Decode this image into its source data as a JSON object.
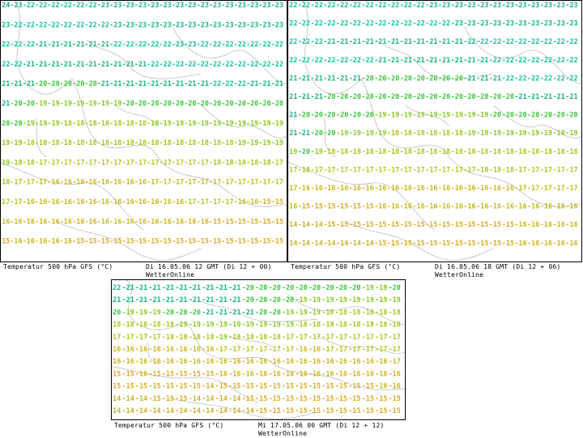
{
  "panels": [
    {
      "id": "p1",
      "title": "Temperatur 500 hPa GFS (°C)",
      "valid": "Di 16.05.06 12 GMT (Di 12 + 00)",
      "source": "WetterOnline",
      "rows": [
        [
          24,
          23,
          22,
          22,
          22,
          22,
          22,
          22,
          23,
          23,
          23,
          23,
          23,
          23,
          23,
          23,
          23,
          23,
          23,
          23,
          23,
          23,
          23
        ],
        [
          23,
          22,
          22,
          22,
          22,
          22,
          22,
          22,
          22,
          23,
          23,
          23,
          23,
          23,
          23,
          23,
          23,
          23,
          23,
          23,
          23,
          23,
          23
        ],
        [
          22,
          22,
          22,
          21,
          21,
          21,
          21,
          21,
          21,
          22,
          22,
          22,
          22,
          22,
          23,
          23,
          22,
          22,
          22,
          22,
          22,
          22,
          22
        ],
        [
          22,
          22,
          21,
          21,
          21,
          21,
          21,
          21,
          21,
          21,
          21,
          21,
          22,
          22,
          22,
          22,
          22,
          22,
          22,
          22,
          22,
          22,
          22
        ],
        [
          21,
          21,
          21,
          20,
          20,
          20,
          20,
          20,
          21,
          21,
          21,
          21,
          21,
          21,
          21,
          21,
          21,
          22,
          22,
          22,
          21,
          21,
          21
        ],
        [
          21,
          20,
          20,
          19,
          19,
          19,
          19,
          19,
          19,
          19,
          20,
          20,
          20,
          20,
          20,
          20,
          20,
          20,
          20,
          20,
          20,
          20,
          20
        ],
        [
          20,
          20,
          19,
          19,
          19,
          18,
          18,
          18,
          18,
          18,
          18,
          18,
          19,
          19,
          19,
          19,
          19,
          19,
          19,
          19,
          19,
          19,
          19
        ],
        [
          19,
          19,
          18,
          18,
          18,
          18,
          18,
          18,
          18,
          18,
          18,
          18,
          18,
          18,
          18,
          18,
          18,
          18,
          18,
          19,
          19,
          19,
          19
        ],
        [
          19,
          18,
          18,
          17,
          17,
          17,
          17,
          17,
          17,
          17,
          17,
          17,
          17,
          17,
          17,
          17,
          17,
          18,
          18,
          18,
          18,
          18,
          17
        ],
        [
          18,
          17,
          17,
          17,
          16,
          16,
          16,
          16,
          16,
          16,
          16,
          16,
          17,
          17,
          17,
          17,
          17,
          17,
          17,
          17,
          17,
          17,
          17
        ],
        [
          17,
          17,
          16,
          16,
          16,
          16,
          16,
          16,
          16,
          16,
          16,
          16,
          16,
          16,
          16,
          17,
          17,
          17,
          17,
          16,
          16,
          15,
          15
        ],
        [
          16,
          16,
          16,
          16,
          16,
          16,
          16,
          16,
          16,
          16,
          16,
          16,
          16,
          16,
          16,
          16,
          16,
          15,
          15,
          15,
          15,
          15,
          15
        ],
        [
          15,
          16,
          16,
          16,
          16,
          16,
          15,
          15,
          15,
          15,
          15,
          15,
          15,
          15,
          15,
          15,
          15,
          15,
          15,
          15,
          15,
          15,
          15
        ]
      ]
    },
    {
      "id": "p2",
      "title": "Temperatur 500 hPa GFS (°C)",
      "valid": "Di 16.05.06 18 GMT (Di 12 + 06)",
      "source": "WetterOnline",
      "rows": [
        [
          22,
          22,
          22,
          22,
          22,
          22,
          22,
          22,
          22,
          22,
          22,
          23,
          23,
          23,
          23,
          23,
          23,
          23,
          23,
          23,
          23,
          23,
          23
        ],
        [
          22,
          22,
          22,
          22,
          22,
          22,
          22,
          22,
          22,
          22,
          22,
          22,
          22,
          23,
          23,
          23,
          23,
          23,
          23,
          23,
          23,
          23,
          23
        ],
        [
          22,
          22,
          22,
          21,
          21,
          21,
          21,
          21,
          21,
          21,
          21,
          21,
          21,
          21,
          22,
          22,
          22,
          22,
          22,
          22,
          22,
          22,
          22
        ],
        [
          22,
          22,
          22,
          22,
          22,
          22,
          22,
          21,
          21,
          21,
          21,
          21,
          21,
          21,
          21,
          21,
          22,
          22,
          22,
          22,
          22,
          22,
          22
        ],
        [
          21,
          21,
          21,
          21,
          21,
          21,
          20,
          20,
          20,
          20,
          20,
          20,
          20,
          20,
          21,
          21,
          21,
          22,
          22,
          22,
          22,
          22,
          22
        ],
        [
          21,
          21,
          21,
          20,
          20,
          20,
          20,
          20,
          20,
          20,
          20,
          20,
          20,
          20,
          20,
          20,
          20,
          20,
          21,
          21,
          21,
          21,
          21
        ],
        [
          21,
          20,
          20,
          20,
          20,
          20,
          20,
          19,
          19,
          19,
          19,
          19,
          19,
          19,
          19,
          19,
          20,
          20,
          20,
          20,
          20,
          20,
          20
        ],
        [
          21,
          21,
          20,
          20,
          19,
          19,
          19,
          19,
          18,
          18,
          18,
          18,
          18,
          18,
          19,
          19,
          19,
          19,
          19,
          19,
          19,
          19,
          19
        ],
        [
          19,
          20,
          19,
          18,
          18,
          18,
          18,
          18,
          18,
          18,
          18,
          18,
          18,
          18,
          18,
          18,
          18,
          18,
          18,
          18,
          18,
          18,
          18
        ],
        [
          17,
          18,
          17,
          17,
          17,
          17,
          17,
          17,
          17,
          17,
          17,
          17,
          17,
          17,
          17,
          18,
          18,
          18,
          17,
          17,
          17,
          17,
          17
        ],
        [
          17,
          16,
          16,
          16,
          16,
          16,
          16,
          16,
          16,
          16,
          16,
          16,
          16,
          16,
          16,
          16,
          16,
          16,
          17,
          17,
          17,
          17,
          17
        ],
        [
          16,
          15,
          15,
          15,
          15,
          15,
          15,
          16,
          16,
          16,
          16,
          16,
          16,
          16,
          16,
          16,
          16,
          16,
          16,
          16,
          16,
          16,
          16
        ],
        [
          14,
          14,
          14,
          15,
          15,
          15,
          15,
          15,
          15,
          15,
          15,
          15,
          15,
          15,
          15,
          15,
          15,
          15,
          16,
          16,
          16,
          16,
          16
        ],
        [
          14,
          14,
          14,
          14,
          14,
          14,
          14,
          15,
          15,
          15,
          15,
          15,
          15,
          15,
          15,
          15,
          15,
          15,
          16,
          16,
          16,
          16,
          16
        ]
      ]
    },
    {
      "id": "p3",
      "title": "Temperatur 500 hPa GFS (°C)",
      "valid": "Mi 17.05.06 00 GMT (Di 12 + 12)",
      "source": "WetterOnline",
      "rows": [
        [
          22,
          21,
          21,
          21,
          21,
          21,
          21,
          21,
          21,
          21,
          20,
          20,
          20,
          20,
          20,
          20,
          20,
          20,
          20,
          19,
          19,
          20
        ],
        [
          21,
          21,
          21,
          21,
          21,
          21,
          21,
          21,
          21,
          21,
          20,
          20,
          20,
          20,
          19,
          19,
          19,
          19,
          19,
          19,
          19,
          19
        ],
        [
          20,
          19,
          19,
          19,
          20,
          20,
          20,
          21,
          21,
          21,
          21,
          20,
          20,
          19,
          19,
          19,
          18,
          18,
          18,
          18,
          18,
          18
        ],
        [
          18,
          18,
          18,
          18,
          18,
          19,
          19,
          19,
          19,
          19,
          19,
          19,
          19,
          19,
          18,
          18,
          18,
          18,
          18,
          18,
          18,
          18
        ],
        [
          17,
          17,
          17,
          17,
          18,
          18,
          18,
          18,
          19,
          18,
          18,
          18,
          18,
          17,
          17,
          17,
          17,
          17,
          17,
          17,
          17,
          17
        ],
        [
          16,
          16,
          16,
          16,
          16,
          16,
          16,
          16,
          17,
          17,
          17,
          17,
          17,
          17,
          16,
          16,
          17,
          17,
          17,
          17,
          17,
          17
        ],
        [
          16,
          16,
          16,
          16,
          16,
          16,
          16,
          16,
          16,
          16,
          16,
          16,
          16,
          16,
          16,
          16,
          16,
          16,
          16,
          16,
          16,
          17
        ],
        [
          15,
          15,
          16,
          15,
          15,
          15,
          15,
          15,
          16,
          16,
          16,
          16,
          16,
          16,
          16,
          16,
          16,
          16,
          16,
          16,
          16,
          16
        ],
        [
          15,
          15,
          15,
          15,
          15,
          15,
          15,
          14,
          15,
          15,
          15,
          15,
          15,
          15,
          15,
          15,
          15,
          15,
          15,
          15,
          16,
          16
        ],
        [
          14,
          14,
          14,
          15,
          15,
          15,
          14,
          14,
          14,
          14,
          15,
          15,
          15,
          15,
          15,
          15,
          15,
          15,
          15,
          15,
          15,
          15
        ],
        [
          14,
          14,
          14,
          14,
          14,
          14,
          14,
          14,
          14,
          14,
          14,
          15,
          15,
          15,
          15,
          15,
          15,
          15,
          15,
          15,
          15,
          15
        ]
      ]
    }
  ],
  "colors": {
    "c24": "#1ca38d",
    "c23": "#14b38f",
    "c22": "#10c0a0",
    "c21": "#14b37d",
    "c20": "#3ec73e",
    "c19": "#8ac925",
    "c18": "#a6c51c",
    "c17": "#b8c218",
    "c16": "#cbb61c",
    "c15": "#d9aa22",
    "c14": "#c9b02c",
    "coast": "#b4b4b4"
  }
}
